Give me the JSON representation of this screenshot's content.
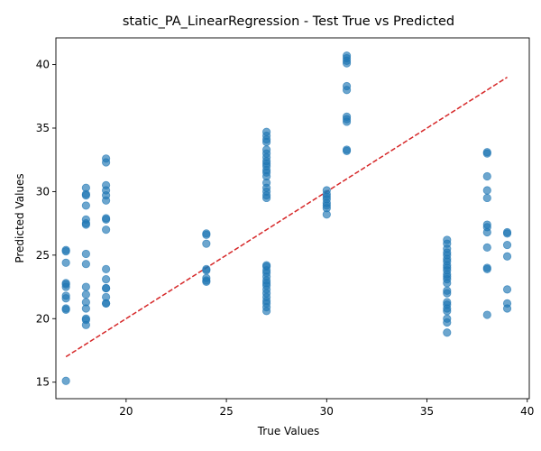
{
  "chart_data": {
    "type": "scatter",
    "title": "static_PA_LinearRegression - Test True vs Predicted",
    "xlabel": "True Values",
    "ylabel": "Predicted Values",
    "xlim": [
      16.5,
      40.1
    ],
    "ylim": [
      13.7,
      42.1
    ],
    "xticks": [
      20,
      25,
      30,
      35,
      40
    ],
    "yticks": [
      15,
      20,
      25,
      30,
      35,
      40
    ],
    "grid": false,
    "legend": "none",
    "point_color": "#1f77b4",
    "point_alpha": 0.65,
    "reference_line": {
      "style": "dashed",
      "color": "#d62728",
      "x": [
        17,
        39
      ],
      "y": [
        17,
        39
      ]
    },
    "points": [
      [
        17,
        25.4
      ],
      [
        17,
        25.3
      ],
      [
        17,
        24.4
      ],
      [
        17,
        22.8
      ],
      [
        17,
        22.7
      ],
      [
        17,
        22.5
      ],
      [
        17,
        21.8
      ],
      [
        17,
        21.6
      ],
      [
        17,
        20.8
      ],
      [
        17,
        20.7
      ],
      [
        17,
        15.1
      ],
      [
        18,
        30.3
      ],
      [
        18,
        29.8
      ],
      [
        18,
        29.7
      ],
      [
        18,
        28.9
      ],
      [
        18,
        27.8
      ],
      [
        18,
        27.5
      ],
      [
        18,
        27.4
      ],
      [
        18,
        25.1
      ],
      [
        18,
        24.3
      ],
      [
        18,
        22.5
      ],
      [
        18,
        21.9
      ],
      [
        18,
        21.3
      ],
      [
        18,
        20.8
      ],
      [
        18,
        20.0
      ],
      [
        18,
        19.9
      ],
      [
        18,
        19.5
      ],
      [
        19,
        32.6
      ],
      [
        19,
        32.3
      ],
      [
        19,
        30.5
      ],
      [
        19,
        30.1
      ],
      [
        19,
        29.7
      ],
      [
        19,
        29.3
      ],
      [
        19,
        27.9
      ],
      [
        19,
        27.8
      ],
      [
        19,
        27.0
      ],
      [
        19,
        23.9
      ],
      [
        19,
        23.1
      ],
      [
        19,
        22.4
      ],
      [
        19,
        22.4
      ],
      [
        19,
        21.7
      ],
      [
        19,
        21.2
      ],
      [
        19,
        21.2
      ],
      [
        24,
        26.7
      ],
      [
        24,
        26.6
      ],
      [
        24,
        25.9
      ],
      [
        24,
        23.9
      ],
      [
        24,
        23.8
      ],
      [
        24,
        23.2
      ],
      [
        24,
        23.0
      ],
      [
        24,
        22.9
      ],
      [
        27,
        34.7
      ],
      [
        27,
        34.4
      ],
      [
        27,
        34.1
      ],
      [
        27,
        33.9
      ],
      [
        27,
        33.3
      ],
      [
        27,
        33.0
      ],
      [
        27,
        32.7
      ],
      [
        27,
        32.4
      ],
      [
        27,
        32.2
      ],
      [
        27,
        32.0
      ],
      [
        27,
        31.7
      ],
      [
        27,
        31.5
      ],
      [
        27,
        31.2
      ],
      [
        27,
        30.7
      ],
      [
        27,
        30.3
      ],
      [
        27,
        30.0
      ],
      [
        27,
        29.7
      ],
      [
        27,
        29.5
      ],
      [
        27,
        24.2
      ],
      [
        27,
        24.1
      ],
      [
        27,
        23.8
      ],
      [
        27,
        23.6
      ],
      [
        27,
        23.3
      ],
      [
        27,
        23.0
      ],
      [
        27,
        22.8
      ],
      [
        27,
        22.6
      ],
      [
        27,
        22.3
      ],
      [
        27,
        22.0
      ],
      [
        27,
        21.7
      ],
      [
        27,
        21.4
      ],
      [
        27,
        21.2
      ],
      [
        27,
        20.9
      ],
      [
        27,
        20.6
      ],
      [
        30,
        30.1
      ],
      [
        30,
        29.8
      ],
      [
        30,
        29.6
      ],
      [
        30,
        29.4
      ],
      [
        30,
        29.1
      ],
      [
        30,
        28.9
      ],
      [
        30,
        28.7
      ],
      [
        30,
        28.2
      ],
      [
        31,
        40.7
      ],
      [
        31,
        40.5
      ],
      [
        31,
        40.3
      ],
      [
        31,
        40.1
      ],
      [
        31,
        38.3
      ],
      [
        31,
        38.0
      ],
      [
        31,
        35.9
      ],
      [
        31,
        35.7
      ],
      [
        31,
        35.5
      ],
      [
        31,
        33.3
      ],
      [
        31,
        33.2
      ],
      [
        36,
        26.2
      ],
      [
        36,
        25.9
      ],
      [
        36,
        25.5
      ],
      [
        36,
        25.2
      ],
      [
        36,
        25.0
      ],
      [
        36,
        24.7
      ],
      [
        36,
        24.5
      ],
      [
        36,
        24.2
      ],
      [
        36,
        24.0
      ],
      [
        36,
        23.8
      ],
      [
        36,
        23.5
      ],
      [
        36,
        23.3
      ],
      [
        36,
        23.1
      ],
      [
        36,
        22.8
      ],
      [
        36,
        22.2
      ],
      [
        36,
        22.0
      ],
      [
        36,
        21.3
      ],
      [
        36,
        21.1
      ],
      [
        36,
        20.8
      ],
      [
        36,
        20.6
      ],
      [
        36,
        20.0
      ],
      [
        36,
        19.7
      ],
      [
        36,
        18.9
      ],
      [
        38,
        33.1
      ],
      [
        38,
        33.0
      ],
      [
        38,
        31.2
      ],
      [
        38,
        30.1
      ],
      [
        38,
        29.5
      ],
      [
        38,
        27.4
      ],
      [
        38,
        27.2
      ],
      [
        38,
        26.8
      ],
      [
        38,
        25.6
      ],
      [
        38,
        24.0
      ],
      [
        38,
        23.9
      ],
      [
        38,
        20.3
      ],
      [
        39,
        26.8
      ],
      [
        39,
        26.7
      ],
      [
        39,
        25.8
      ],
      [
        39,
        24.9
      ],
      [
        39,
        22.3
      ],
      [
        39,
        21.2
      ],
      [
        39,
        20.8
      ]
    ]
  }
}
